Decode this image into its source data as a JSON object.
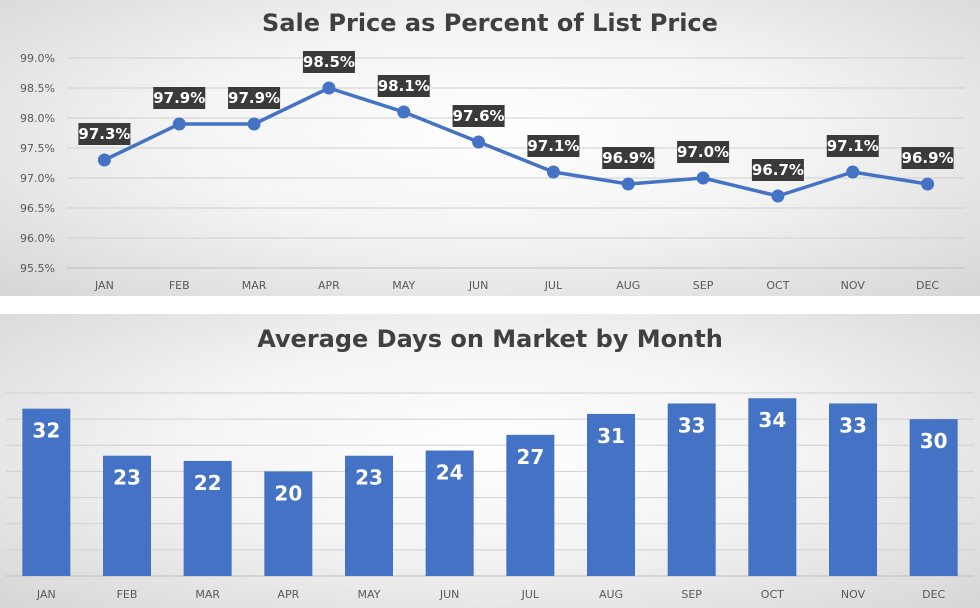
{
  "chart_data": [
    {
      "type": "line",
      "title": "Sale Price as Percent of List Price",
      "categories": [
        "JAN",
        "FEB",
        "MAR",
        "APR",
        "MAY",
        "JUN",
        "JUL",
        "AUG",
        "SEP",
        "OCT",
        "NOV",
        "DEC"
      ],
      "series": [
        {
          "values": [
            97.3,
            97.9,
            97.9,
            98.5,
            98.1,
            97.6,
            97.1,
            96.9,
            97.0,
            96.7,
            97.1,
            96.9
          ]
        }
      ],
      "data_labels": [
        "97.3%",
        "97.9%",
        "97.9%",
        "98.5%",
        "98.1%",
        "97.6%",
        "97.1%",
        "96.9%",
        "97.0%",
        "96.7%",
        "97.1%",
        "96.9%"
      ],
      "ylim": [
        95.5,
        99.0
      ],
      "yticks": [
        99.0,
        98.5,
        98.0,
        97.5,
        97.0,
        96.5,
        96.0,
        95.5
      ],
      "ytick_labels": [
        "99.0%",
        "98.5%",
        "98.0%",
        "97.5%",
        "97.0%",
        "96.5%",
        "96.0%",
        "95.5%"
      ],
      "xlabel": "",
      "ylabel": "",
      "grid": true,
      "line_color": "#4472C4",
      "label_bg_color": "#3a3a3a"
    },
    {
      "type": "bar",
      "title": "Average Days on Market by Month",
      "categories": [
        "JAN",
        "FEB",
        "MAR",
        "APR",
        "MAY",
        "JUN",
        "JUL",
        "AUG",
        "SEP",
        "OCT",
        "NOV",
        "DEC"
      ],
      "values": [
        32,
        23,
        22,
        20,
        23,
        24,
        27,
        31,
        33,
        34,
        33,
        30
      ],
      "ylim": [
        0,
        35
      ],
      "xlabel": "",
      "ylabel": "",
      "grid": true,
      "bar_color": "#4472C4"
    }
  ]
}
